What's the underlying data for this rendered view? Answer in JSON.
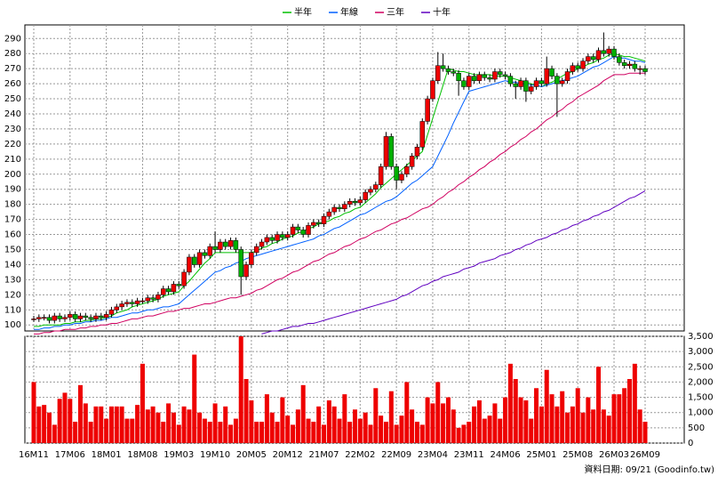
{
  "chart_data": [
    {
      "type": "candlestick",
      "source_note": "資料日期: 09/21 (Goodinfo.tw)",
      "categories": [
        "16M11",
        null,
        null,
        null,
        null,
        null,
        null,
        "17M06",
        null,
        null,
        null,
        null,
        null,
        null,
        "18M01",
        null,
        null,
        null,
        null,
        null,
        null,
        "18M08",
        null,
        null,
        null,
        null,
        null,
        null,
        "19M03",
        null,
        null,
        null,
        null,
        null,
        null,
        "19M10",
        null,
        null,
        null,
        null,
        null,
        null,
        "20M05",
        null,
        null,
        null,
        null,
        null,
        null,
        "20M12",
        null,
        null,
        null,
        null,
        null,
        null,
        "21M07",
        null,
        null,
        null,
        null,
        null,
        null,
        "22M02",
        null,
        null,
        null,
        null,
        null,
        null,
        "22M09",
        null,
        null,
        null,
        null,
        null,
        null,
        "23M04",
        null,
        null,
        null,
        null,
        null,
        null,
        "23M11",
        null,
        null,
        null,
        null,
        null,
        null,
        "24M06",
        null,
        null,
        null,
        null,
        null,
        null,
        "25M01",
        null,
        null,
        null,
        null,
        null,
        null,
        "25M08",
        null,
        null,
        null,
        null,
        null,
        null,
        "26M03",
        null,
        null,
        null,
        null,
        null,
        "26M09"
      ],
      "open": [
        104,
        104,
        105,
        105,
        103,
        106,
        104,
        105,
        107,
        104,
        106,
        105,
        104,
        106,
        105,
        107,
        110,
        112,
        114,
        115,
        114,
        116,
        116,
        118,
        117,
        120,
        124,
        122,
        127,
        126,
        135,
        145,
        140,
        148,
        146,
        152,
        150,
        155,
        152,
        156,
        150,
        132,
        140,
        148,
        152,
        155,
        158,
        156,
        160,
        158,
        160,
        165,
        163,
        160,
        166,
        168,
        167,
        172,
        175,
        178,
        177,
        180,
        182,
        181,
        183,
        188,
        190,
        193,
        205,
        225,
        205,
        196,
        200,
        205,
        212,
        218,
        235,
        250,
        262,
        272,
        270,
        268,
        267,
        262,
        258,
        265,
        262,
        266,
        264,
        263,
        268,
        266,
        265,
        260,
        258,
        262,
        255,
        258,
        262,
        260,
        270,
        265,
        260,
        262,
        268,
        272,
        270,
        275,
        278,
        276,
        282,
        280,
        283,
        278,
        274,
        272,
        273,
        270,
        270
      ],
      "high": [
        106,
        107,
        107,
        107,
        108,
        108,
        107,
        109,
        109,
        108,
        108,
        107,
        108,
        108,
        109,
        112,
        114,
        116,
        117,
        117,
        118,
        118,
        120,
        120,
        122,
        126,
        126,
        129,
        129,
        137,
        147,
        147,
        150,
        150,
        154,
        162,
        157,
        157,
        158,
        158,
        152,
        142,
        150,
        154,
        157,
        160,
        160,
        162,
        162,
        162,
        167,
        167,
        165,
        168,
        170,
        170,
        174,
        177,
        180,
        180,
        182,
        184,
        184,
        185,
        190,
        192,
        195,
        207,
        228,
        227,
        207,
        202,
        207,
        214,
        220,
        237,
        252,
        264,
        281,
        280,
        272,
        270,
        269,
        264,
        267,
        267,
        268,
        268,
        266,
        270,
        270,
        268,
        267,
        262,
        264,
        264,
        260,
        264,
        264,
        278,
        272,
        267,
        264,
        270,
        274,
        274,
        277,
        280,
        280,
        284,
        294,
        285,
        285,
        280,
        276,
        275,
        275,
        272,
        272
      ],
      "low": [
        102,
        102,
        103,
        101,
        101,
        102,
        102,
        103,
        102,
        102,
        103,
        102,
        102,
        103,
        103,
        105,
        108,
        110,
        112,
        112,
        112,
        114,
        114,
        115,
        115,
        118,
        120,
        120,
        124,
        124,
        133,
        138,
        138,
        144,
        144,
        148,
        148,
        150,
        150,
        148,
        120,
        130,
        138,
        146,
        150,
        153,
        154,
        154,
        156,
        156,
        158,
        161,
        158,
        158,
        164,
        165,
        165,
        170,
        173,
        175,
        175,
        178,
        179,
        179,
        181,
        186,
        188,
        191,
        203,
        203,
        190,
        194,
        198,
        203,
        210,
        216,
        233,
        248,
        260,
        268,
        266,
        265,
        252,
        256,
        256,
        260,
        260,
        262,
        261,
        261,
        264,
        263,
        258,
        250,
        256,
        248,
        253,
        256,
        258,
        258,
        263,
        238,
        258,
        260,
        266,
        268,
        268,
        273,
        274,
        274,
        278,
        278,
        276,
        272,
        270,
        270,
        268,
        266,
        266
      ],
      "close": [
        104,
        105,
        105,
        103,
        106,
        104,
        105,
        107,
        104,
        106,
        105,
        104,
        106,
        105,
        107,
        110,
        112,
        114,
        115,
        114,
        116,
        116,
        118,
        117,
        120,
        124,
        122,
        127,
        126,
        135,
        145,
        140,
        148,
        146,
        152,
        150,
        155,
        152,
        156,
        150,
        132,
        140,
        148,
        152,
        155,
        158,
        156,
        160,
        158,
        160,
        165,
        163,
        160,
        166,
        168,
        167,
        172,
        175,
        178,
        177,
        180,
        182,
        181,
        183,
        188,
        190,
        193,
        205,
        225,
        205,
        196,
        200,
        205,
        212,
        218,
        235,
        250,
        262,
        272,
        270,
        268,
        267,
        262,
        258,
        265,
        262,
        266,
        264,
        263,
        268,
        266,
        265,
        260,
        258,
        262,
        255,
        258,
        262,
        260,
        270,
        265,
        260,
        262,
        268,
        272,
        270,
        275,
        278,
        276,
        282,
        280,
        283,
        278,
        274,
        272,
        273,
        270,
        270,
        268
      ],
      "up_color": "#ee0000",
      "down_color": "#00b000",
      "series": [
        {
          "name": "半年",
          "color": "#00c000",
          "values": [
            99,
            99,
            100,
            100,
            100,
            100,
            101,
            101,
            102,
            102,
            103,
            103,
            104,
            104,
            105,
            106,
            108,
            109,
            110,
            112,
            113,
            114,
            115,
            116,
            117,
            119,
            120,
            121,
            122,
            126,
            129,
            133,
            137,
            141,
            144,
            148,
            148,
            148,
            148,
            148,
            148,
            148,
            148,
            149,
            151,
            152,
            154,
            155,
            157,
            158,
            159,
            161,
            162,
            164,
            165,
            167,
            168,
            169,
            171,
            172,
            174,
            175,
            177,
            178,
            181,
            184,
            187,
            191,
            194,
            197,
            200,
            203,
            206,
            209,
            212,
            215,
            226,
            237,
            248,
            259,
            270,
            269,
            268,
            268,
            267,
            266,
            266,
            266,
            266,
            265,
            265,
            265,
            264,
            263,
            262,
            261,
            260,
            259,
            258,
            260,
            261,
            263,
            265,
            267,
            268,
            270,
            271,
            273,
            274,
            276,
            277,
            279,
            280,
            279,
            278,
            278,
            277,
            276,
            275
          ]
        },
        {
          "name": "年線",
          "color": "#0060ff",
          "values": [
            97,
            97,
            98,
            98,
            99,
            99,
            100,
            100,
            101,
            101,
            102,
            102,
            103,
            103,
            104,
            105,
            105,
            106,
            107,
            108,
            108,
            109,
            110,
            110,
            111,
            112,
            112,
            113,
            114,
            117,
            120,
            123,
            126,
            129,
            132,
            135,
            136,
            138,
            139,
            141,
            142,
            144,
            145,
            146,
            147,
            148,
            149,
            150,
            151,
            152,
            153,
            154,
            155,
            156,
            157,
            159,
            160,
            162,
            164,
            165,
            167,
            169,
            171,
            173,
            174,
            176,
            178,
            180,
            182,
            183,
            185,
            188,
            191,
            194,
            196,
            199,
            202,
            205,
            212,
            219,
            226,
            234,
            241,
            248,
            255,
            256,
            257,
            258,
            259,
            260,
            261,
            262,
            261,
            261,
            260,
            260,
            259,
            259,
            258,
            259,
            260,
            261,
            262,
            263,
            264,
            265,
            267,
            269,
            271,
            272,
            274,
            276,
            278,
            277,
            277,
            276,
            275,
            275,
            274
          ]
        },
        {
          "name": "三年",
          "color": "#d00060",
          "values": [
            94,
            94,
            95,
            95,
            96,
            96,
            97,
            97,
            97,
            98,
            98,
            99,
            99,
            100,
            100,
            101,
            101,
            102,
            103,
            104,
            104,
            105,
            106,
            106,
            107,
            108,
            109,
            109,
            110,
            111,
            111,
            112,
            113,
            114,
            114,
            115,
            116,
            117,
            118,
            118,
            119,
            120,
            121,
            123,
            124,
            126,
            128,
            130,
            131,
            133,
            135,
            136,
            138,
            140,
            142,
            143,
            145,
            147,
            148,
            150,
            152,
            153,
            155,
            157,
            158,
            160,
            162,
            163,
            165,
            167,
            168,
            170,
            171,
            173,
            175,
            177,
            178,
            180,
            183,
            185,
            188,
            190,
            193,
            195,
            198,
            200,
            203,
            205,
            208,
            210,
            213,
            215,
            218,
            220,
            223,
            225,
            228,
            230,
            233,
            236,
            238,
            241,
            243,
            246,
            248,
            251,
            253,
            255,
            257,
            259,
            262,
            264,
            266,
            266,
            266,
            267,
            267,
            267,
            267
          ]
        },
        {
          "name": "十年",
          "color": "#6000c0",
          "values": [
            null,
            null,
            null,
            null,
            null,
            null,
            null,
            null,
            null,
            null,
            null,
            null,
            null,
            null,
            null,
            null,
            null,
            null,
            null,
            null,
            null,
            null,
            null,
            null,
            null,
            null,
            null,
            null,
            null,
            null,
            null,
            null,
            null,
            null,
            null,
            null,
            null,
            null,
            null,
            null,
            null,
            null,
            null,
            null,
            94,
            95,
            96,
            96,
            97,
            98,
            99,
            99,
            100,
            101,
            101,
            102,
            103,
            104,
            105,
            106,
            107,
            108,
            109,
            110,
            111,
            112,
            113,
            114,
            115,
            116,
            117,
            119,
            120,
            122,
            124,
            126,
            127,
            129,
            130,
            132,
            133,
            134,
            135,
            137,
            138,
            139,
            141,
            142,
            143,
            144,
            146,
            147,
            148,
            150,
            151,
            153,
            154,
            156,
            157,
            158,
            160,
            161,
            163,
            164,
            166,
            167,
            169,
            170,
            172,
            173,
            175,
            176,
            178,
            180,
            182,
            184,
            185,
            187,
            189
          ]
        }
      ],
      "ylim": [
        96,
        299
      ],
      "yticks": [
        100,
        110,
        120,
        130,
        140,
        150,
        160,
        170,
        180,
        190,
        200,
        210,
        220,
        230,
        240,
        250,
        260,
        270,
        280,
        290
      ],
      "grid": true
    },
    {
      "type": "bar",
      "color": "#ee0000",
      "values": [
        2000,
        1200,
        1250,
        1000,
        600,
        1450,
        1650,
        1450,
        700,
        1900,
        1300,
        700,
        1200,
        1200,
        800,
        1200,
        1200,
        1200,
        800,
        800,
        1250,
        2600,
        1100,
        1200,
        1000,
        700,
        1300,
        1000,
        600,
        1200,
        1100,
        2900,
        1000,
        800,
        700,
        1300,
        700,
        1200,
        600,
        800,
        3500,
        2100,
        1400,
        700,
        700,
        1600,
        1000,
        700,
        1500,
        900,
        600,
        1100,
        1900,
        800,
        700,
        1200,
        600,
        1400,
        1200,
        800,
        1600,
        700,
        1100,
        800,
        1000,
        600,
        1800,
        900,
        700,
        1700,
        600,
        900,
        2000,
        1100,
        700,
        600,
        1500,
        1300,
        2000,
        1300,
        1500,
        1100,
        500,
        600,
        700,
        1200,
        1400,
        800,
        900,
        1300,
        800,
        1500,
        2600,
        2100,
        1500,
        1400,
        800,
        1800,
        1200,
        2400,
        1600,
        1200,
        1700,
        1000,
        1200,
        1800,
        1000,
        1500,
        1100,
        2500,
        1100,
        900,
        1600,
        1600,
        1800,
        2100,
        2600,
        1100,
        700
      ],
      "ylim": [
        0,
        3500
      ],
      "yticks": [
        0,
        500,
        {
          "value": 1000,
          "label": "1,000"
        },
        {
          "value": 1500,
          "label": "1,500"
        },
        {
          "value": 2000,
          "label": "2,000"
        },
        {
          "value": 2500,
          "label": "2,500"
        },
        {
          "value": 3000,
          "label": "3,000"
        },
        {
          "value": 3500,
          "label": "3,500"
        }
      ],
      "grid": true
    }
  ]
}
